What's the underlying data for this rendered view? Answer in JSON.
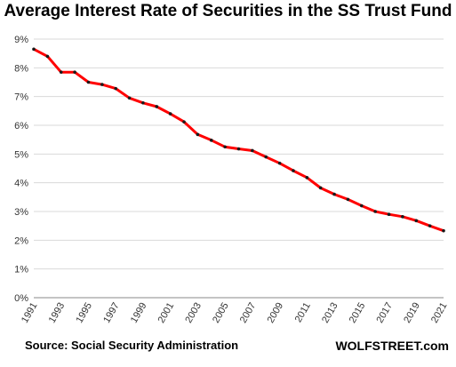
{
  "chart_data": {
    "type": "line",
    "title": "Average Interest Rate of Securities in the SS Trust Fund",
    "xlabel": "",
    "ylabel": "",
    "x": [
      1991,
      1992,
      1993,
      1994,
      1995,
      1996,
      1997,
      1998,
      1999,
      2000,
      2001,
      2002,
      2003,
      2004,
      2005,
      2006,
      2007,
      2008,
      2009,
      2010,
      2011,
      2012,
      2013,
      2014,
      2015,
      2016,
      2017,
      2018,
      2019,
      2020,
      2021
    ],
    "series": [
      {
        "values": [
          8.65,
          8.4,
          7.85,
          7.85,
          7.5,
          7.42,
          7.28,
          6.95,
          6.78,
          6.65,
          6.4,
          6.12,
          5.68,
          5.48,
          5.25,
          5.18,
          5.12,
          4.9,
          4.68,
          4.42,
          4.18,
          3.82,
          3.6,
          3.42,
          3.2,
          3.0,
          2.9,
          2.82,
          2.68,
          2.5,
          2.33
        ],
        "color": "#ff0000"
      }
    ],
    "ylim": [
      0,
      9
    ],
    "yticks": [
      "0%",
      "1%",
      "2%",
      "3%",
      "4%",
      "5%",
      "6%",
      "7%",
      "8%",
      "9%"
    ],
    "xticks": [
      "1991",
      "1993",
      "1995",
      "1997",
      "1999",
      "2001",
      "2003",
      "2005",
      "2007",
      "2009",
      "2011",
      "2013",
      "2015",
      "2017",
      "2019",
      "2021"
    ],
    "grid": true,
    "legend": "none"
  },
  "footer": {
    "source": "Source: Social Security Administration",
    "brand": "WOLFSTREET.com"
  }
}
